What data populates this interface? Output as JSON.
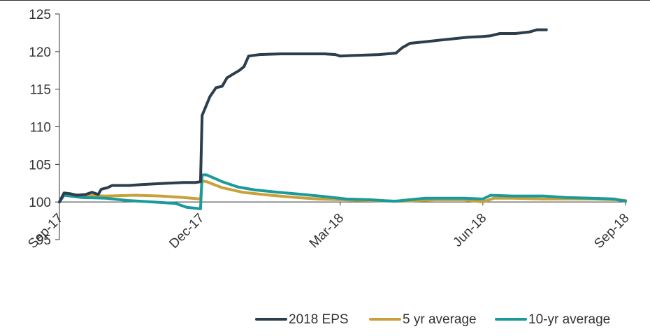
{
  "chart_data": {
    "type": "line",
    "title": "",
    "xlabel": "",
    "ylabel": "",
    "ylim": [
      95,
      125
    ],
    "yticks": [
      95,
      100,
      105,
      110,
      115,
      120,
      125
    ],
    "xlim": [
      "2017-09-01",
      "2018-09-01"
    ],
    "xtick_labels": [
      "Sep-17",
      "Dec-17",
      "Mar-18",
      "Jun-18",
      "Sep-18"
    ],
    "xtick_dates": [
      "2017-09-01",
      "2017-12-01",
      "2018-03-01",
      "2018-06-01",
      "2018-09-01"
    ],
    "baseline": 100,
    "legend_position": "bottom-right",
    "series": [
      {
        "name": "2018 EPS",
        "color": "#2c3e4c",
        "points": [
          [
            "2017-09-01",
            100.0
          ],
          [
            "2017-09-04",
            101.2
          ],
          [
            "2017-09-08",
            101.1
          ],
          [
            "2017-09-12",
            100.9
          ],
          [
            "2017-09-18",
            101.0
          ],
          [
            "2017-09-22",
            101.3
          ],
          [
            "2017-09-26",
            101.0
          ],
          [
            "2017-09-28",
            101.7
          ],
          [
            "2017-10-02",
            101.9
          ],
          [
            "2017-10-05",
            102.2
          ],
          [
            "2017-10-10",
            102.2
          ],
          [
            "2017-10-16",
            102.2
          ],
          [
            "2017-10-23",
            102.3
          ],
          [
            "2017-11-01",
            102.4
          ],
          [
            "2017-11-10",
            102.5
          ],
          [
            "2017-11-20",
            102.6
          ],
          [
            "2017-11-28",
            102.6
          ],
          [
            "2017-12-01",
            102.7
          ],
          [
            "2017-12-02",
            111.5
          ],
          [
            "2017-12-04",
            112.5
          ],
          [
            "2017-12-07",
            114.0
          ],
          [
            "2017-12-11",
            115.2
          ],
          [
            "2017-12-15",
            115.4
          ],
          [
            "2017-12-18",
            116.5
          ],
          [
            "2017-12-22",
            117.0
          ],
          [
            "2017-12-26",
            117.5
          ],
          [
            "2017-12-29",
            118.0
          ],
          [
            "2018-01-01",
            119.4
          ],
          [
            "2018-01-08",
            119.6
          ],
          [
            "2018-01-22",
            119.7
          ],
          [
            "2018-02-05",
            119.7
          ],
          [
            "2018-02-19",
            119.7
          ],
          [
            "2018-02-26",
            119.6
          ],
          [
            "2018-03-01",
            119.4
          ],
          [
            "2018-03-12",
            119.5
          ],
          [
            "2018-03-26",
            119.6
          ],
          [
            "2018-04-06",
            119.8
          ],
          [
            "2018-04-10",
            120.5
          ],
          [
            "2018-04-15",
            121.1
          ],
          [
            "2018-04-25",
            121.3
          ],
          [
            "2018-05-08",
            121.6
          ],
          [
            "2018-05-22",
            121.9
          ],
          [
            "2018-06-01",
            122.0
          ],
          [
            "2018-06-06",
            122.1
          ],
          [
            "2018-06-12",
            122.4
          ],
          [
            "2018-06-22",
            122.4
          ],
          [
            "2018-07-01",
            122.6
          ],
          [
            "2018-07-06",
            122.9
          ],
          [
            "2018-07-12",
            122.9
          ]
        ]
      },
      {
        "name": "5 yr average",
        "color": "#c9a03a",
        "points": [
          [
            "2017-09-01",
            100.0
          ],
          [
            "2017-09-04",
            101.1
          ],
          [
            "2017-09-15",
            100.9
          ],
          [
            "2017-10-01",
            100.8
          ],
          [
            "2017-10-20",
            100.9
          ],
          [
            "2017-11-05",
            100.8
          ],
          [
            "2017-11-20",
            100.6
          ],
          [
            "2017-12-01",
            100.4
          ],
          [
            "2017-12-02",
            102.8
          ],
          [
            "2017-12-05",
            102.7
          ],
          [
            "2017-12-15",
            101.9
          ],
          [
            "2017-12-28",
            101.3
          ],
          [
            "2018-01-15",
            100.9
          ],
          [
            "2018-02-01",
            100.6
          ],
          [
            "2018-02-15",
            100.4
          ],
          [
            "2018-03-01",
            100.3
          ],
          [
            "2018-03-20",
            100.2
          ],
          [
            "2018-04-10",
            100.1
          ],
          [
            "2018-05-01",
            100.3
          ],
          [
            "2018-05-20",
            100.3
          ],
          [
            "2018-06-01",
            100.0
          ],
          [
            "2018-06-08",
            100.5
          ],
          [
            "2018-06-20",
            100.5
          ],
          [
            "2018-07-10",
            100.4
          ],
          [
            "2018-07-25",
            100.4
          ],
          [
            "2018-08-10",
            100.4
          ],
          [
            "2018-08-25",
            100.3
          ],
          [
            "2018-09-01",
            100.2
          ]
        ]
      },
      {
        "name": "10-yr average",
        "color": "#1a9a9a",
        "points": [
          [
            "2017-09-01",
            100.0
          ],
          [
            "2017-09-04",
            100.9
          ],
          [
            "2017-09-15",
            100.6
          ],
          [
            "2017-10-01",
            100.5
          ],
          [
            "2017-10-15",
            100.2
          ],
          [
            "2017-11-01",
            100.0
          ],
          [
            "2017-11-15",
            99.8
          ],
          [
            "2017-11-22",
            99.3
          ],
          [
            "2017-12-01",
            99.1
          ],
          [
            "2017-12-02",
            103.6
          ],
          [
            "2017-12-05",
            103.6
          ],
          [
            "2017-12-15",
            102.7
          ],
          [
            "2017-12-25",
            102.0
          ],
          [
            "2018-01-05",
            101.6
          ],
          [
            "2018-01-20",
            101.3
          ],
          [
            "2018-02-05",
            101.0
          ],
          [
            "2018-02-20",
            100.7
          ],
          [
            "2018-03-05",
            100.4
          ],
          [
            "2018-03-20",
            100.3
          ],
          [
            "2018-04-05",
            100.1
          ],
          [
            "2018-04-15",
            100.3
          ],
          [
            "2018-04-25",
            100.5
          ],
          [
            "2018-05-20",
            100.5
          ],
          [
            "2018-06-01",
            100.4
          ],
          [
            "2018-06-06",
            100.9
          ],
          [
            "2018-06-20",
            100.8
          ],
          [
            "2018-07-10",
            100.8
          ],
          [
            "2018-07-25",
            100.6
          ],
          [
            "2018-08-10",
            100.5
          ],
          [
            "2018-08-25",
            100.4
          ],
          [
            "2018-09-01",
            100.1
          ]
        ]
      }
    ]
  }
}
